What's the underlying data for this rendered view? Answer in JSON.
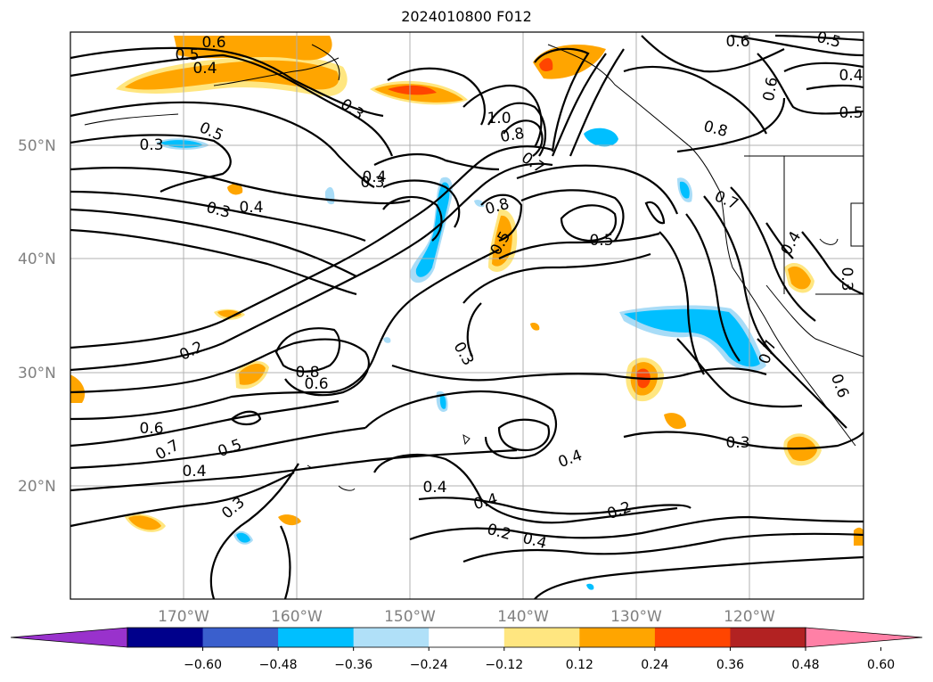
{
  "title": "2024010800 F012",
  "map": {
    "lat_ticks": [
      "50°N",
      "40°N",
      "30°N",
      "20°N"
    ],
    "lon_ticks": [
      "170°W",
      "160°W",
      "150°W",
      "140°W",
      "130°W",
      "120°W"
    ],
    "contour_labels": [
      "0.6",
      "0.5",
      "0.4",
      "0.3",
      "0.5",
      "0.3",
      "0.8",
      "1.0",
      "0.6",
      "0.5",
      "0.4",
      "0.6",
      "0.5",
      "0.3",
      "0.7",
      "0.8",
      "0.7",
      "0.4",
      "0.4",
      "0.3",
      "0.8",
      "0.5",
      "0.5",
      "0.4",
      "0.3",
      "0.2",
      "0.8",
      "0.6",
      "0.3",
      "0.6",
      "0.7",
      "0.5",
      "0.4",
      "0.4",
      "0.4",
      "0.4",
      "0.3",
      "0.2",
      "0.3",
      "0.4",
      "0.2",
      "0.7",
      "0.6"
    ],
    "grid": true,
    "shading_colors": {
      "orange": "#ffa500",
      "red_orange": "#ff4500",
      "light_yellow": "#ffe680",
      "deep_sky": "#00bfff",
      "light_blue": "#a8dcf7"
    }
  },
  "colorbar": {
    "tick_labels": [
      "−0.60",
      "−0.48",
      "−0.36",
      "−0.24",
      "−0.12",
      "0.12",
      "0.24",
      "0.36",
      "0.48",
      "0.60"
    ],
    "colors": [
      "#9932cc",
      "#00008b",
      "#3a5fcd",
      "#00bfff",
      "#b0e0f8",
      "#ffffff",
      "#ffe680",
      "#ffa500",
      "#ff4500",
      "#b22222",
      "#ff80a6"
    ]
  }
}
